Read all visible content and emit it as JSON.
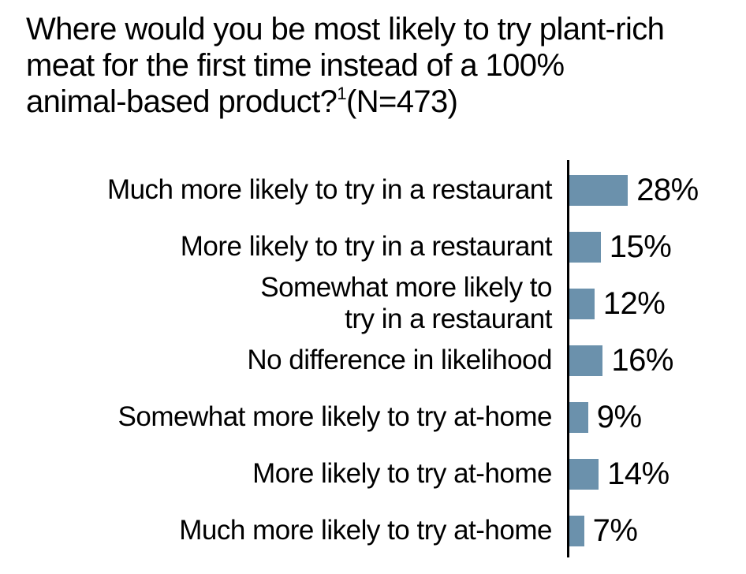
{
  "title": {
    "line1": "Where would you be most likely to try plant-rich",
    "line2": "meat for the first time instead of a 100%",
    "line3_before_sup": "animal-based product?",
    "superscript": "1",
    "line3_after_sup": "(N=473)"
  },
  "colors": {
    "bar": "#6b91ac",
    "axis": "#000000",
    "text": "#000000",
    "background": "#ffffff"
  },
  "chart_data": {
    "type": "bar",
    "orientation": "horizontal",
    "title": "Where would you be most likely to try plant-rich meat for the first time instead of a 100% animal-based product?¹(N=473)",
    "sample_size": 473,
    "unit": "%",
    "xlim": [
      0,
      30
    ],
    "grid": false,
    "legend": false,
    "value_label_position": "right-of-bar",
    "categories": [
      "Much more likely to try in a restaurant",
      "More likely to try in a restaurant",
      "Somewhat more likely to\ntry in a restaurant",
      "No difference in likelihood",
      "Somewhat more likely to try at-home",
      "More likely to try at-home",
      "Much more likely to try at-home"
    ],
    "values": [
      28,
      15,
      12,
      16,
      9,
      14,
      7
    ],
    "value_labels": [
      "28%",
      "15%",
      "12%",
      "16%",
      "9%",
      "14%",
      "7%"
    ]
  }
}
